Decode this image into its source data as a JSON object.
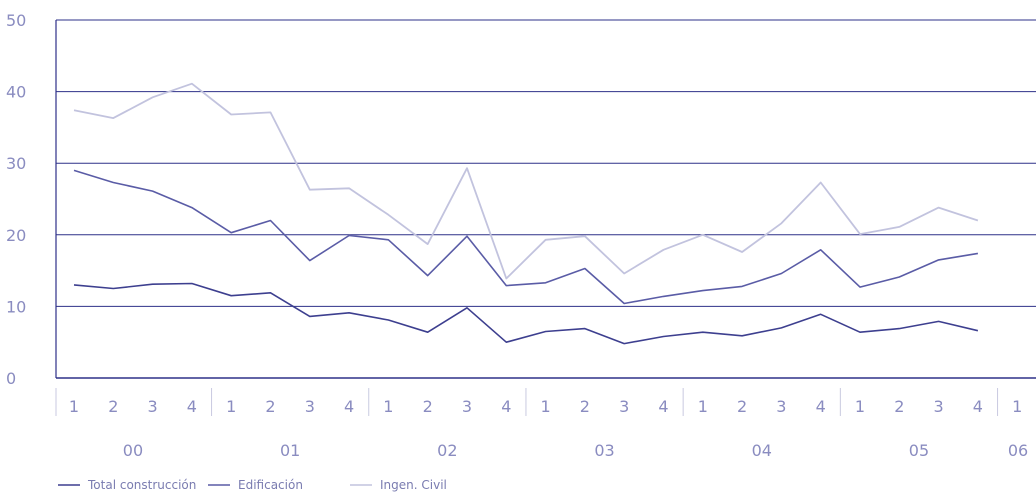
{
  "chart_data": {
    "type": "line",
    "title": "",
    "xlabel": "",
    "ylabel": "",
    "ylim": [
      0,
      50
    ],
    "yticks": [
      "0",
      "10",
      "20",
      "30",
      "40",
      "50"
    ],
    "grid": true,
    "x_quarters": [
      "1",
      "2",
      "3",
      "4",
      "1",
      "2",
      "3",
      "4",
      "1",
      "2",
      "3",
      "4",
      "1",
      "2",
      "3",
      "4",
      "1",
      "2",
      "3",
      "4",
      "1",
      "2",
      "3",
      "4",
      "1"
    ],
    "x_years": [
      "00",
      "01",
      "02",
      "03",
      "04",
      "05",
      "06"
    ],
    "categories": [
      "2000-Q1",
      "2000-Q2",
      "2000-Q3",
      "2000-Q4",
      "2001-Q1",
      "2001-Q2",
      "2001-Q3",
      "2001-Q4",
      "2002-Q1",
      "2002-Q2",
      "2002-Q3",
      "2002-Q4",
      "2003-Q1",
      "2003-Q2",
      "2003-Q3",
      "2003-Q4",
      "2004-Q1",
      "2004-Q2",
      "2004-Q3",
      "2004-Q4",
      "2005-Q1",
      "2005-Q2",
      "2005-Q3",
      "2005-Q4"
    ],
    "legend_position": "bottom-left",
    "series": [
      {
        "name": "Total construcción",
        "color": "#3d3f8f",
        "values": [
          13.0,
          12.5,
          13.1,
          13.2,
          11.5,
          11.9,
          8.6,
          9.1,
          8.1,
          6.4,
          9.8,
          5.0,
          6.5,
          6.9,
          4.8,
          5.8,
          6.4,
          5.9,
          7.0,
          8.9,
          6.4,
          6.9,
          7.9,
          6.6
        ]
      },
      {
        "name": "Edificación",
        "color": "#5a5ca6",
        "values": [
          29.0,
          27.3,
          26.1,
          23.8,
          20.3,
          22.0,
          16.4,
          19.9,
          19.3,
          14.3,
          19.8,
          12.9,
          13.3,
          15.3,
          10.4,
          11.4,
          12.2,
          12.8,
          14.6,
          17.9,
          12.7,
          14.1,
          16.5,
          17.4
        ]
      },
      {
        "name": "Ingen. Civil",
        "color": "#c2c3de",
        "values": [
          37.4,
          36.3,
          39.2,
          41.1,
          36.8,
          37.1,
          26.3,
          26.5,
          22.8,
          18.7,
          29.3,
          13.9,
          19.3,
          19.8,
          14.6,
          17.9,
          20.0,
          17.6,
          21.6,
          27.3,
          20.1,
          21.1,
          23.8,
          22.0
        ]
      }
    ]
  }
}
